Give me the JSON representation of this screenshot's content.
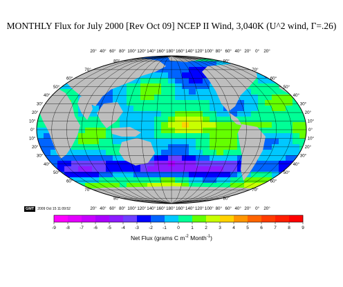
{
  "title": "MONTHLY Flux for July 2000 [Rev Oct 09] NCEP II Wind, 3,040K (U^2 wind, Γ=.26)",
  "gmt_label": "GMT",
  "timestamp": "2009 Oct 15 11:09:52",
  "longitude_labels": [
    "20°",
    "40°",
    "60°",
    "80°",
    "100°",
    "120°",
    "140°",
    "160°",
    "180°",
    "160°",
    "140°",
    "120°",
    "100°",
    "80°",
    "60°",
    "40°",
    "20°",
    "0°",
    "20°"
  ],
  "latitude_labels": [
    "80°",
    "70°",
    "60°",
    "50°",
    "40°",
    "30°",
    "20°",
    "10°",
    "0°",
    "10°",
    "20°",
    "30°",
    "40°",
    "50°",
    "60°",
    "70°",
    "80°"
  ],
  "colorbar": {
    "ticks": [
      "-9",
      "-8",
      "-7",
      "-6",
      "-5",
      "-4",
      "-3",
      "-2",
      "-1",
      "0",
      "1",
      "2",
      "3",
      "4",
      "5",
      "6",
      "7",
      "8",
      "9"
    ],
    "label_main": "Net Flux (grams C m",
    "label_sup1": "-2",
    "label_mid": " Month",
    "label_sup2": "-1",
    "label_end": ")",
    "colors": [
      "#ff00ff",
      "#e400ff",
      "#c800ff",
      "#aa00ff",
      "#8c1cff",
      "#6e40ff",
      "#0000ff",
      "#0064ff",
      "#00c8ff",
      "#00ff96",
      "#64ff00",
      "#c8ff00",
      "#ffd200",
      "#ff9600",
      "#ff6400",
      "#ff3c00",
      "#ff1e00",
      "#ff0000"
    ]
  },
  "colors": {
    "land": "#bebebe",
    "grid": "#000000"
  }
}
